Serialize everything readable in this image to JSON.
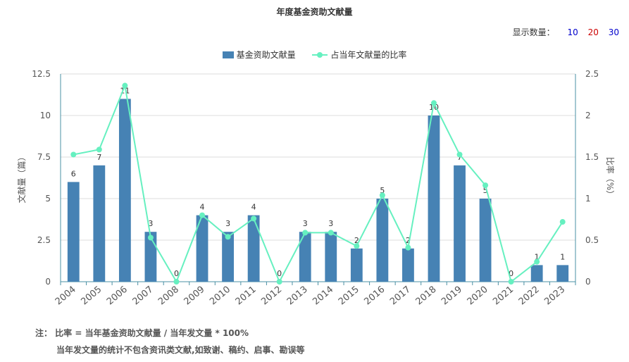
{
  "title": "年度基金资助文献量",
  "display": {
    "label": "显示数量：",
    "options": [
      {
        "text": "10",
        "color": "#0000cc"
      },
      {
        "text": "20",
        "color": "#cc0000"
      },
      {
        "text": "30",
        "color": "#0000cc"
      }
    ]
  },
  "legend": {
    "bar_label": "基金资助文献量",
    "line_label": "占当年文献量的比率"
  },
  "colors": {
    "bar": "#4682b4",
    "line": "#66f0c0",
    "axis": "#4a90a4",
    "grid": "#dddddd"
  },
  "chart_data": {
    "type": "bar",
    "categories": [
      "2004",
      "2005",
      "2006",
      "2007",
      "2008",
      "2009",
      "2010",
      "2011",
      "2012",
      "2013",
      "2014",
      "2015",
      "2016",
      "2017",
      "2018",
      "2019",
      "2020",
      "2021",
      "2022",
      "2023"
    ],
    "series": [
      {
        "name": "基金资助文献量",
        "type": "bar",
        "axis": "left",
        "values": [
          6,
          7,
          11,
          3,
          0,
          4,
          3,
          4,
          0,
          3,
          3,
          2,
          5,
          2,
          10,
          7,
          5,
          0,
          1,
          1
        ]
      },
      {
        "name": "占当年文献量的比率",
        "type": "line",
        "axis": "right",
        "values": [
          1.53,
          1.59,
          2.36,
          0.53,
          0,
          0.8,
          0.54,
          0.76,
          0,
          0.59,
          0.59,
          0.43,
          1.04,
          0.41,
          2.15,
          1.53,
          1.16,
          0,
          0.24,
          0.72
        ]
      }
    ],
    "ylabel_left": "文献量（篇）",
    "ylabel_right": "比率（%）",
    "ylim_left": [
      0,
      12.5
    ],
    "ylim_right": [
      0,
      2.5
    ],
    "yticks_left": [
      "0",
      "2.5",
      "5",
      "7.5",
      "10",
      "12.5"
    ],
    "yticks_right": [
      "0",
      "0.5",
      "1",
      "1.5",
      "2",
      "2.5"
    ],
    "grid": true,
    "legend_position": "top-center"
  },
  "note": {
    "line1": "注： 比率 = 当年基金资助文献量 / 当年发文量 * 100%",
    "line2": "当年发文量的统计不包含资讯类文献,如致谢、稿约、启事、勘误等"
  }
}
